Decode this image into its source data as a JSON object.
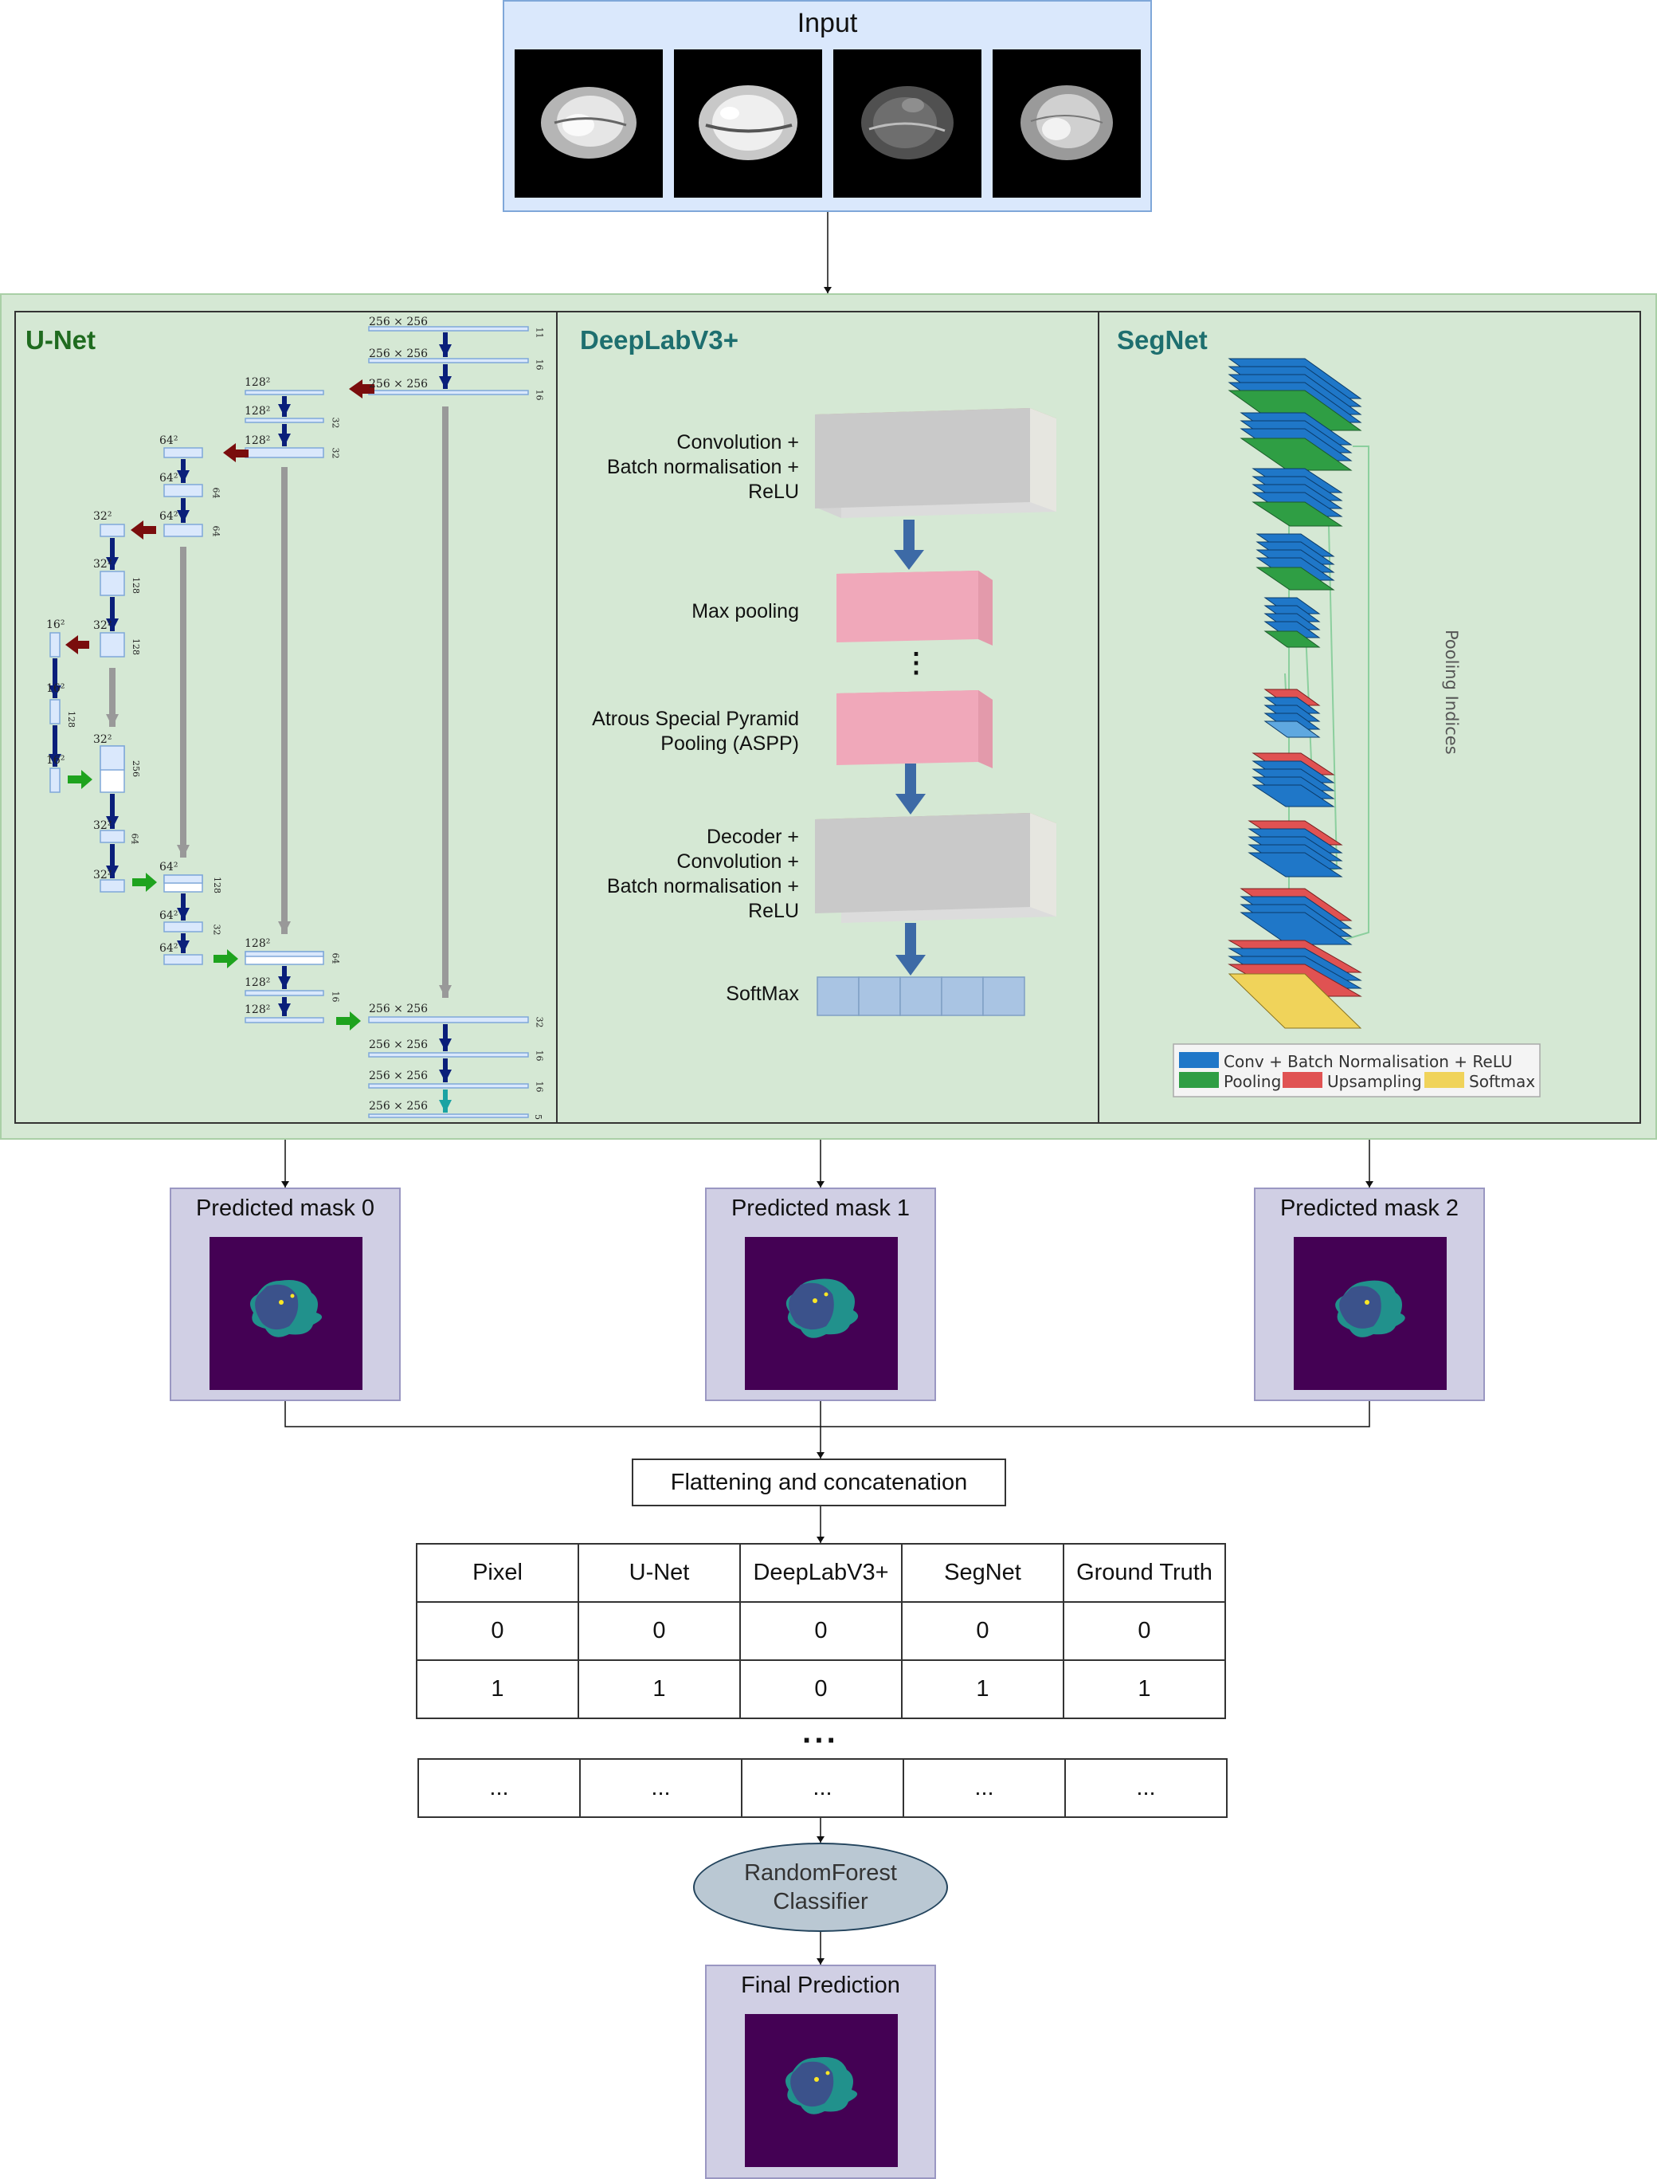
{
  "input": {
    "title": "Input"
  },
  "unet": {
    "title": "U-Net",
    "labels": {
      "r256a": "256 × 256",
      "r256b": "256 × 256",
      "r256c": "256 × 256",
      "r256d": "256 × 256",
      "r256e": "256 × 256",
      "r256f": "256 × 256",
      "r256g": "256 × 256",
      "c11": "11",
      "c16a": "16",
      "c16b": "16",
      "c32d": "32",
      "c16d": "16",
      "c16e": "16",
      "c5": "5",
      "r128a": "128²",
      "r128b": "128²",
      "r128c": "128²",
      "r128d": "128²",
      "r128e": "128²",
      "r128f": "128²",
      "c32a": "32",
      "c32b": "32",
      "c64e": "64",
      "c16f": "16",
      "r64a": "64²",
      "r64b": "64²",
      "r64c": "64²",
      "r64d": "64²",
      "r64e": "64²",
      "r64f": "64²",
      "c64a": "64",
      "c64b": "64",
      "c128d": "128",
      "c32e": "32",
      "r32a": "32²",
      "r32b": "32²",
      "r32c": "32²",
      "r32d": "32²",
      "r32e": "32²",
      "r32f": "32²",
      "c128a": "128",
      "c128b": "128",
      "c256": "256",
      "c64c": "64",
      "r16a": "16²",
      "r16b": "16²",
      "r16c": "16²",
      "c128c": "128"
    }
  },
  "deeplab": {
    "title": "DeepLabV3+",
    "stages": {
      "conv_l1": "Convolution +",
      "conv_l2": "Batch normalisation +",
      "conv_l3": "ReLU",
      "maxpool": "Max pooling",
      "aspp_l1": "Atrous Special Pyramid",
      "aspp_l2": "Pooling (ASPP)",
      "dec_l1": "Decoder +",
      "dec_l2": "Convolution +",
      "dec_l3": "Batch normalisation +",
      "dec_l4": "ReLU",
      "softmax": "SoftMax",
      "dots": "⋮"
    }
  },
  "segnet": {
    "title": "SegNet",
    "pooling_indices": "Pooling Indices",
    "legend": {
      "conv": "Conv + Batch Normalisation + ReLU",
      "pool": "Pooling",
      "up": "Upsampling",
      "soft": "Softmax"
    }
  },
  "masks": [
    {
      "title": "Predicted mask 0"
    },
    {
      "title": "Predicted mask 1"
    },
    {
      "title": "Predicted mask 2"
    }
  ],
  "flatten": {
    "label": "Flattening and concatenation"
  },
  "table": {
    "headers": [
      "Pixel",
      "U-Net",
      "DeepLabV3+",
      "SegNet",
      "Ground Truth"
    ],
    "rows": [
      [
        "0",
        "0",
        "0",
        "0",
        "0"
      ],
      [
        "1",
        "1",
        "0",
        "1",
        "1"
      ]
    ],
    "ellipsis": "···",
    "last_row": [
      "...",
      "...",
      "...",
      "...",
      "..."
    ]
  },
  "classifier": {
    "line1": "RandomForest",
    "line2": "Classifier"
  },
  "final": {
    "title": "Final Prediction"
  },
  "colors": {
    "input_bg": "#dae8fc",
    "models_bg": "#d5e8d4",
    "mask_bg": "#d0cfe4",
    "mask_img": "#440154",
    "unet_title": "#1f6b1f",
    "deeplab_title": "#1e6f6f",
    "segnet_title": "#1e6f6f",
    "seg_conv": "#1f77c8",
    "seg_pool": "#2f9e44",
    "seg_up": "#e05252",
    "seg_soft": "#f0d35a",
    "arrow_down": "#0a1f7a",
    "arrow_pool": "#7a0d0d",
    "arrow_up": "#1ea31e",
    "arrow_skip": "#999999",
    "rf_bg": "#bac8d3"
  }
}
